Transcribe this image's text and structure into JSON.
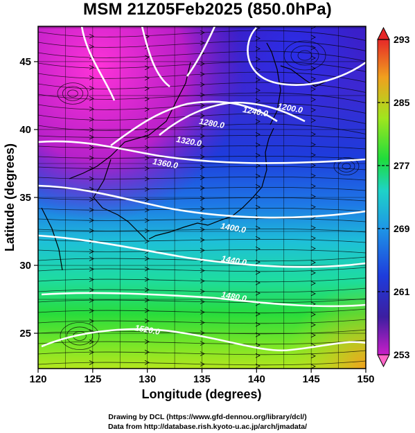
{
  "title": "MSM 21Z05Feb2025 (850.0hPa)",
  "footer": {
    "line1": "Drawing by DCL (https://www.gfd-dennou.org/library/dcl/)",
    "line2": "Data from http://database.rish.kyoto-u.ac.jp/arch/jmadata/"
  },
  "map": {
    "xlabel": "Longitude (degrees)",
    "ylabel": "Latitude  (degrees)",
    "lon_range": [
      120,
      150
    ],
    "lat_range": [
      22.4,
      47.6
    ],
    "lon_ticks": [
      "120",
      "125",
      "130",
      "135",
      "140",
      "145",
      "150"
    ],
    "lat_ticks": [
      "25",
      "30",
      "35",
      "40",
      "45"
    ],
    "contour_labels": [
      "1200.0",
      "1240.0",
      "1280.0",
      "1320.0",
      "1360.0",
      "1400.0",
      "1440.0",
      "1480.0",
      "1520.0"
    ]
  },
  "colorbar": {
    "tick_labels": [
      "293",
      "285",
      "277",
      "269",
      "261",
      "253"
    ],
    "range": [
      253,
      293
    ]
  }
}
